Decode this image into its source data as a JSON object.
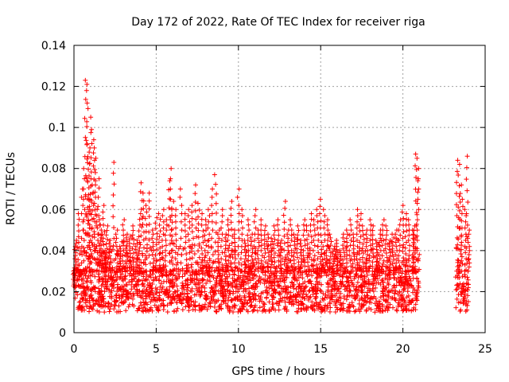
{
  "chart_data": {
    "type": "scatter",
    "title": "Day 172 of 2022, Rate Of TEC Index for receiver riga",
    "xlabel": "GPS time / hours",
    "ylabel": "ROTI / TECUs",
    "xlim": [
      0,
      25
    ],
    "ylim": [
      0,
      0.14
    ],
    "xticks": [
      0,
      5,
      10,
      15,
      20,
      25
    ],
    "xtick_labels": [
      "0",
      "5",
      "10",
      "15",
      "20",
      "25"
    ],
    "yticks": [
      0,
      0.02,
      0.04,
      0.06,
      0.08,
      0.1,
      0.12,
      0.14
    ],
    "ytick_labels": [
      "0",
      "0.02",
      "0.04",
      "0.06",
      "0.08",
      "0.1",
      "0.12",
      "0.14"
    ],
    "grid": true,
    "marker": "+",
    "color": "#ff0000",
    "series": [
      {
        "points": [
          [
            0.0,
            0.022
          ],
          [
            0.1,
            0.045
          ],
          [
            0.2,
            0.031
          ],
          [
            0.3,
            0.058
          ],
          [
            0.4,
            0.028
          ],
          [
            0.5,
            0.07
          ],
          [
            0.6,
            0.08
          ],
          [
            0.7,
            0.123
          ],
          [
            0.75,
            0.121
          ],
          [
            0.8,
            0.118
          ],
          [
            0.85,
            0.092
          ],
          [
            0.9,
            0.088
          ],
          [
            0.95,
            0.065
          ],
          [
            1.0,
            0.105
          ],
          [
            1.05,
            0.099
          ],
          [
            1.1,
            0.072
          ],
          [
            1.2,
            0.094
          ],
          [
            1.25,
            0.09
          ],
          [
            1.3,
            0.085
          ],
          [
            1.4,
            0.06
          ],
          [
            1.5,
            0.075
          ],
          [
            1.6,
            0.055
          ],
          [
            1.7,
            0.048
          ],
          [
            1.8,
            0.062
          ],
          [
            1.9,
            0.04
          ],
          [
            2.0,
            0.052
          ],
          [
            2.2,
            0.045
          ],
          [
            2.4,
            0.083
          ],
          [
            2.6,
            0.05
          ],
          [
            2.8,
            0.042
          ],
          [
            3.0,
            0.055
          ],
          [
            3.2,
            0.048
          ],
          [
            3.4,
            0.047
          ],
          [
            3.6,
            0.052
          ],
          [
            3.8,
            0.045
          ],
          [
            4.0,
            0.058
          ],
          [
            4.1,
            0.073
          ],
          [
            4.2,
            0.068
          ],
          [
            4.4,
            0.062
          ],
          [
            4.6,
            0.068
          ],
          [
            4.8,
            0.05
          ],
          [
            5.0,
            0.056
          ],
          [
            5.2,
            0.058
          ],
          [
            5.4,
            0.06
          ],
          [
            5.6,
            0.055
          ],
          [
            5.8,
            0.074
          ],
          [
            5.9,
            0.08
          ],
          [
            6.0,
            0.064
          ],
          [
            6.2,
            0.06
          ],
          [
            6.5,
            0.07
          ],
          [
            6.8,
            0.058
          ],
          [
            7.0,
            0.06
          ],
          [
            7.2,
            0.062
          ],
          [
            7.4,
            0.072
          ],
          [
            7.6,
            0.063
          ],
          [
            7.8,
            0.058
          ],
          [
            8.0,
            0.055
          ],
          [
            8.2,
            0.06
          ],
          [
            8.4,
            0.07
          ],
          [
            8.6,
            0.077
          ],
          [
            8.8,
            0.05
          ],
          [
            9.0,
            0.06
          ],
          [
            9.2,
            0.048
          ],
          [
            9.4,
            0.055
          ],
          [
            9.6,
            0.064
          ],
          [
            9.8,
            0.05
          ],
          [
            10.0,
            0.07
          ],
          [
            10.2,
            0.06
          ],
          [
            10.4,
            0.045
          ],
          [
            10.6,
            0.055
          ],
          [
            10.8,
            0.048
          ],
          [
            11.0,
            0.06
          ],
          [
            11.2,
            0.05
          ],
          [
            11.4,
            0.055
          ],
          [
            11.6,
            0.052
          ],
          [
            11.8,
            0.048
          ],
          [
            12.0,
            0.046
          ],
          [
            12.2,
            0.052
          ],
          [
            12.4,
            0.055
          ],
          [
            12.6,
            0.045
          ],
          [
            12.8,
            0.064
          ],
          [
            13.0,
            0.05
          ],
          [
            13.2,
            0.055
          ],
          [
            13.4,
            0.048
          ],
          [
            13.6,
            0.052
          ],
          [
            13.8,
            0.045
          ],
          [
            14.0,
            0.055
          ],
          [
            14.2,
            0.052
          ],
          [
            14.4,
            0.058
          ],
          [
            14.6,
            0.055
          ],
          [
            14.8,
            0.06
          ],
          [
            15.0,
            0.065
          ],
          [
            15.2,
            0.06
          ],
          [
            15.4,
            0.055
          ],
          [
            15.6,
            0.048
          ],
          [
            15.8,
            0.042
          ],
          [
            16.0,
            0.045
          ],
          [
            16.2,
            0.04
          ],
          [
            16.4,
            0.048
          ],
          [
            16.6,
            0.05
          ],
          [
            16.8,
            0.055
          ],
          [
            17.0,
            0.048
          ],
          [
            17.2,
            0.06
          ],
          [
            17.4,
            0.058
          ],
          [
            17.6,
            0.052
          ],
          [
            17.8,
            0.05
          ],
          [
            18.0,
            0.055
          ],
          [
            18.2,
            0.052
          ],
          [
            18.4,
            0.045
          ],
          [
            18.6,
            0.05
          ],
          [
            18.8,
            0.055
          ],
          [
            19.0,
            0.052
          ],
          [
            19.2,
            0.045
          ],
          [
            19.4,
            0.048
          ],
          [
            19.6,
            0.05
          ],
          [
            19.8,
            0.055
          ],
          [
            20.0,
            0.062
          ],
          [
            20.2,
            0.058
          ],
          [
            20.4,
            0.055
          ],
          [
            20.6,
            0.05
          ],
          [
            20.7,
            0.052
          ],
          [
            20.8,
            0.087
          ],
          [
            20.85,
            0.085
          ],
          [
            20.9,
            0.08
          ],
          [
            23.3,
            0.084
          ],
          [
            23.4,
            0.082
          ],
          [
            23.5,
            0.072
          ],
          [
            23.6,
            0.065
          ],
          [
            23.8,
            0.06
          ],
          [
            23.9,
            0.086
          ],
          [
            24.0,
            0.05
          ]
        ],
        "baseline_band": [
          0.01,
          0.032
        ],
        "gap_hours": [
          21.0,
          23.2
        ],
        "data_end_hours": 24.0
      }
    ]
  }
}
